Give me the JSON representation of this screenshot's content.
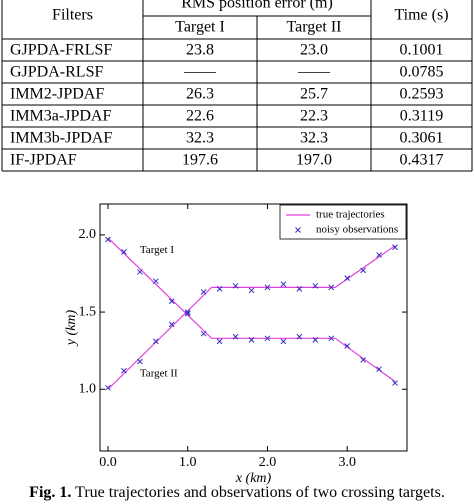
{
  "table": {
    "header": {
      "filters": "Filters",
      "rms": "RMS position error (m)",
      "time": "Time (s)",
      "target1": "Target I",
      "target2": "Target II"
    },
    "rows": [
      [
        "GJPDA-FRLSF",
        "23.8",
        "23.0",
        "0.1001"
      ],
      [
        "GJPDA-RLSF",
        "——",
        "——",
        "0.0785"
      ],
      [
        "IMM2-JPDAF",
        "26.3",
        "25.7",
        "0.2593"
      ],
      [
        "IMM3a-JPDAF",
        "22.6",
        "22.3",
        "0.3119"
      ],
      [
        "IMM3b-JPDAF",
        "32.3",
        "32.3",
        "0.3061"
      ],
      [
        "IF-JPDAF",
        "197.6",
        "197.0",
        "0.4317"
      ]
    ]
  },
  "chart_data": {
    "type": "line",
    "x_label": "x (km)",
    "y_label": "y (km)",
    "xlim": [
      -0.1,
      3.75
    ],
    "ylim": [
      0.6,
      2.2
    ],
    "xticks": [
      {
        "value": 0,
        "label": "0.0"
      },
      {
        "value": 1,
        "label": "1.0"
      },
      {
        "value": 2,
        "label": "2.0"
      },
      {
        "value": 3,
        "label": "3.0"
      }
    ],
    "yticks": [
      {
        "value": 1,
        "label": "1.0"
      },
      {
        "value": 1.5,
        "label": "1.5"
      },
      {
        "value": 2,
        "label": "2.0"
      }
    ],
    "legend": "upper-right",
    "annotations": [
      "Target I",
      "Target II"
    ],
    "series": [
      {
        "name": "true trajectories",
        "color": "#e040e0",
        "style": "line",
        "lines": [
          {
            "x": [
              0,
              1.3,
              2.85,
              3.6
            ],
            "y": [
              1.98,
              1.33,
              1.33,
              1.05
            ]
          },
          {
            "x": [
              0,
              1.3,
              2.85,
              3.6
            ],
            "y": [
              1.0,
              1.66,
              1.66,
              1.93
            ]
          }
        ]
      },
      {
        "name": "noisy observations",
        "color": "#3030c0",
        "style": "marker",
        "lines": [
          {
            "x": [
              0,
              0.2,
              0.4,
              0.6,
              0.8,
              1.0,
              1.2,
              1.4,
              1.6,
              1.8,
              2.0,
              2.2,
              2.4,
              2.6,
              2.8,
              3.0,
              3.2,
              3.4,
              3.6
            ],
            "y": [
              1.97,
              1.89,
              1.76,
              1.7,
              1.57,
              1.49,
              1.36,
              1.31,
              1.34,
              1.32,
              1.33,
              1.31,
              1.34,
              1.32,
              1.33,
              1.28,
              1.19,
              1.13,
              1.04
            ]
          },
          {
            "x": [
              0,
              0.2,
              0.4,
              0.6,
              0.8,
              1.0,
              1.2,
              1.4,
              1.6,
              1.8,
              2.0,
              2.2,
              2.4,
              2.6,
              2.8,
              3.0,
              3.2,
              3.4,
              3.6
            ],
            "y": [
              1.01,
              1.12,
              1.18,
              1.31,
              1.42,
              1.5,
              1.63,
              1.65,
              1.67,
              1.64,
              1.66,
              1.68,
              1.65,
              1.67,
              1.66,
              1.72,
              1.77,
              1.87,
              1.92
            ]
          }
        ]
      }
    ]
  },
  "caption": {
    "label": "Fig. 1.",
    "text": "True trajectories and observations of two crossing targets."
  }
}
